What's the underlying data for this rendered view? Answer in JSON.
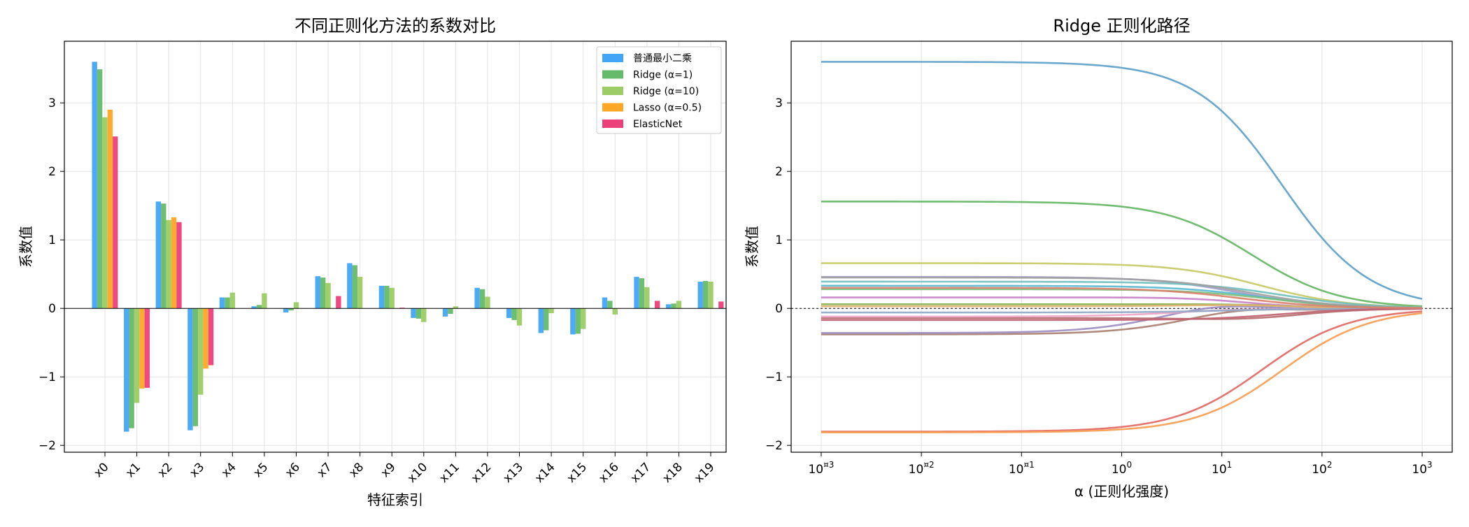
{
  "chart_data": [
    {
      "type": "bar",
      "title": "不同正则化方法的系数对比",
      "xlabel": "特征索引",
      "ylabel": "系数值",
      "ylim": [
        -2.1,
        3.9
      ],
      "yticks": [
        -2,
        -1,
        0,
        1,
        2,
        3
      ],
      "grid": true,
      "legend_position": "top-right",
      "categories": [
        "x0",
        "x1",
        "x2",
        "x3",
        "x4",
        "x5",
        "x6",
        "x7",
        "x8",
        "x9",
        "x10",
        "x11",
        "x12",
        "x13",
        "x14",
        "x15",
        "x16",
        "x17",
        "x18",
        "x19"
      ],
      "series": [
        {
          "name": "普通最小二乘",
          "color": "#42a5f5",
          "values": [
            3.6,
            -1.8,
            1.56,
            -1.78,
            0.16,
            0.03,
            -0.06,
            0.47,
            0.66,
            0.33,
            -0.14,
            -0.12,
            0.3,
            -0.14,
            -0.36,
            -0.38,
            0.16,
            0.46,
            0.06,
            0.39
          ]
        },
        {
          "name": "Ridge (α=1)",
          "color": "#66bb6a",
          "values": [
            3.49,
            -1.75,
            1.53,
            -1.72,
            0.16,
            0.05,
            -0.03,
            0.45,
            0.63,
            0.33,
            -0.15,
            -0.08,
            0.28,
            -0.17,
            -0.32,
            -0.37,
            0.11,
            0.44,
            0.07,
            0.4
          ]
        },
        {
          "name": "Ridge (α=10)",
          "color": "#9ccc65",
          "values": [
            2.79,
            -1.38,
            1.29,
            -1.26,
            0.23,
            0.22,
            0.09,
            0.37,
            0.46,
            0.3,
            -0.2,
            0.03,
            0.17,
            -0.25,
            -0.07,
            -0.3,
            -0.09,
            0.31,
            0.11,
            0.39
          ]
        },
        {
          "name": "Lasso (α=0.5)",
          "color": "#ffa726",
          "values": [
            2.9,
            -1.17,
            1.33,
            -0.88,
            0,
            0,
            0,
            0,
            0,
            0,
            0,
            0,
            0,
            0,
            0,
            0,
            0,
            0,
            0,
            0
          ]
        },
        {
          "name": "ElasticNet",
          "color": "#ec407a",
          "values": [
            2.51,
            -1.16,
            1.26,
            -0.83,
            0,
            0,
            0,
            0.18,
            0,
            0.01,
            0,
            0,
            0,
            0,
            0,
            0,
            0,
            0.11,
            0,
            0.1
          ]
        }
      ]
    },
    {
      "type": "line",
      "title": "Ridge 正则化路径",
      "xlabel": "α (正则化强度)",
      "ylabel": "系数值",
      "xscale": "log",
      "xlim_exp": [
        -3.3,
        3.3
      ],
      "ylim": [
        -2.1,
        3.9
      ],
      "yticks": [
        -2,
        -1,
        0,
        1,
        2,
        3
      ],
      "xtick_exponents": [
        -3,
        -2,
        -1,
        0,
        1,
        2,
        3
      ],
      "xtick_base": "10",
      "xtick_exps_text": [
        "¤3",
        "¤2",
        "¤1",
        "0",
        "1",
        "2",
        "3"
      ],
      "xtick_zero_text": "10",
      "grid": true,
      "zero_reference_line": true,
      "series": [
        {
          "color": "#5b9ec9",
          "coef_at_min_alpha": 3.6,
          "half_alpha": 40,
          "bump": 0
        },
        {
          "color": "#e16763",
          "coef_at_min_alpha": -1.8,
          "half_alpha": 25,
          "bump": 0
        },
        {
          "color": "#f79b4f",
          "coef_at_min_alpha": -1.81,
          "half_alpha": 40,
          "bump": 0
        },
        {
          "color": "#62b562",
          "coef_at_min_alpha": 1.56,
          "half_alpha": 20,
          "bump": 0
        },
        {
          "color": "#c7c966",
          "coef_at_min_alpha": 0.66,
          "half_alpha": 25,
          "bump": 0
        },
        {
          "color": "#9e9ac8",
          "coef_at_min_alpha": 0.46,
          "half_alpha": 15,
          "bump": 0
        },
        {
          "color": "#6fbfbf",
          "coef_at_min_alpha": 0.39,
          "half_alpha": 40,
          "bump": 0
        },
        {
          "color": "#55b8d0",
          "coef_at_min_alpha": 0.33,
          "half_alpha": 25,
          "bump": 0
        },
        {
          "color": "#c781c7",
          "coef_at_min_alpha": 0.16,
          "half_alpha": 10,
          "bump": 0.1
        },
        {
          "color": "#a87d6e",
          "coef_at_min_alpha": -0.38,
          "half_alpha": 15,
          "bump": 0.5
        },
        {
          "color": "#9a8cc0",
          "coef_at_min_alpha": -0.36,
          "half_alpha": 8,
          "bump": 0.55
        },
        {
          "color": "#b56a6a",
          "coef_at_min_alpha": -0.14,
          "half_alpha": 40,
          "bump": -0.2
        },
        {
          "color": "#f0a3c7",
          "coef_at_min_alpha": -0.12,
          "half_alpha": 10,
          "bump": 0.1
        },
        {
          "color": "#88b04b",
          "coef_at_min_alpha": 0.06,
          "half_alpha": 30,
          "bump": 0.05
        },
        {
          "color": "#e0b070",
          "coef_at_min_alpha": 0.03,
          "half_alpha": 30,
          "bump": 0.1
        },
        {
          "color": "#8fa8c8",
          "coef_at_min_alpha": -0.06,
          "half_alpha": 30,
          "bump": 0.05
        },
        {
          "color": "#c06070",
          "coef_at_min_alpha": -0.17,
          "half_alpha": 30,
          "bump": -0.05
        },
        {
          "color": "#7cc07c",
          "coef_at_min_alpha": 0.28,
          "half_alpha": 30,
          "bump": 0
        },
        {
          "color": "#a0a0a0",
          "coef_at_min_alpha": 0.45,
          "half_alpha": 20,
          "bump": 0
        },
        {
          "color": "#d97f6a",
          "coef_at_min_alpha": 0.3,
          "half_alpha": 15,
          "bump": 0
        }
      ]
    }
  ]
}
